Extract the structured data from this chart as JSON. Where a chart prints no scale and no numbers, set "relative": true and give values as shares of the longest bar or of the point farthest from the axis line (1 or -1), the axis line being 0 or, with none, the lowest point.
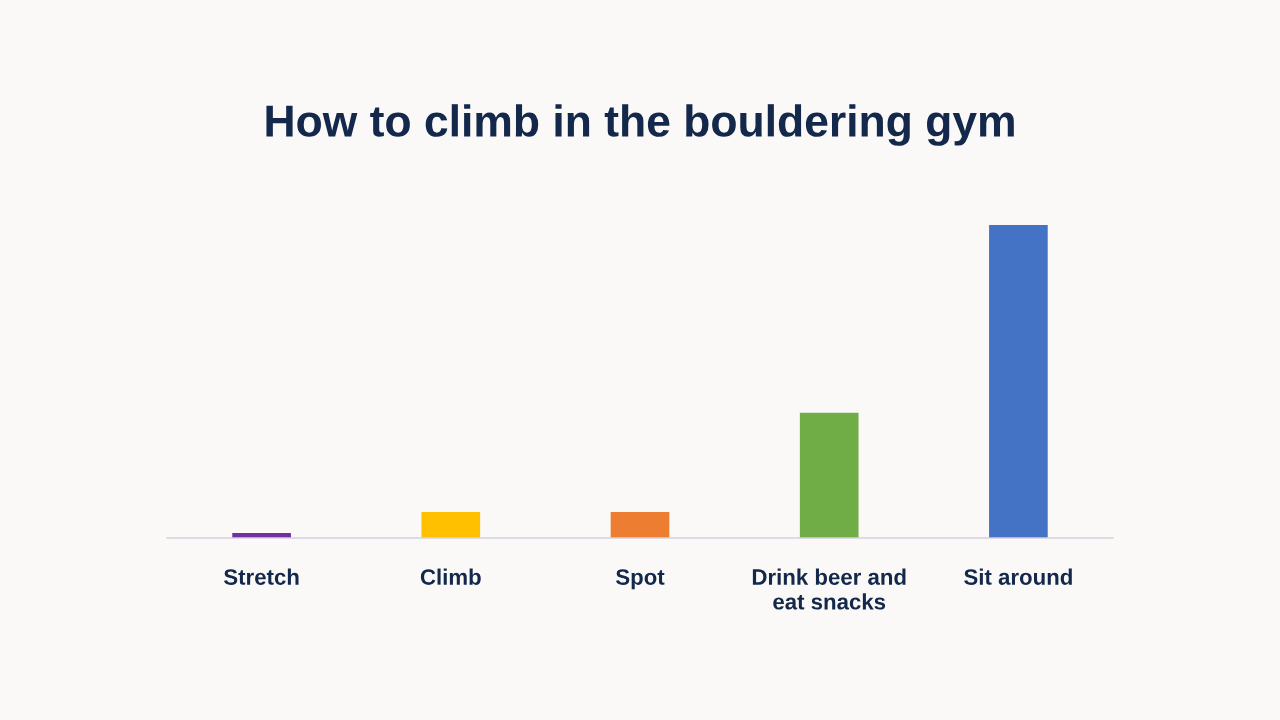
{
  "chart_data": {
    "type": "bar",
    "title": "How to climb in the bouldering gym",
    "categories": [
      "Stretch",
      "Climb",
      "Spot",
      "Drink beer and\neat snacks",
      "Sit around"
    ],
    "values": [
      0.016,
      0.083,
      0.083,
      0.4,
      1
    ],
    "colors": [
      "#7030a0",
      "#ffc000",
      "#ed7d31",
      "#70ad47",
      "#4472c4"
    ],
    "relative": true
  }
}
